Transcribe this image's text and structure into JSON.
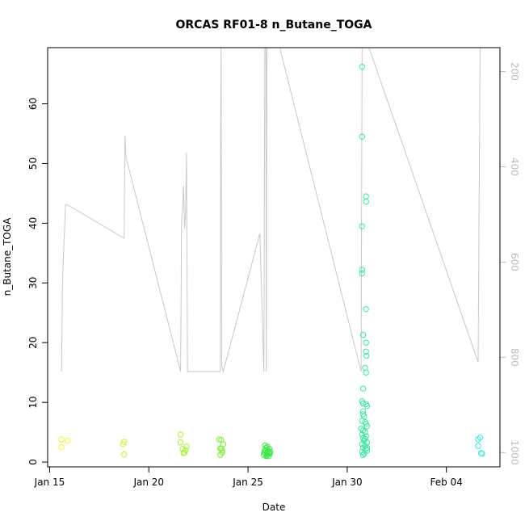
{
  "chart_data": {
    "type": "scatter",
    "title": "ORCAS RF01-8 n_Butane_TOGA",
    "xlabel": "Date",
    "ylabel": "n_Butane_TOGA",
    "x_ticks": [
      {
        "day": 15,
        "label": "Jan 15"
      },
      {
        "day": 20,
        "label": "Jan 20"
      },
      {
        "day": 25,
        "label": "Jan 25"
      },
      {
        "day": 30,
        "label": "Jan 30"
      },
      {
        "day": 35,
        "label": "Feb 04"
      }
    ],
    "xlim": [
      14.9,
      37.7
    ],
    "ylim": [
      -0.8,
      69.4
    ],
    "y_ticks": [
      0,
      10,
      20,
      30,
      40,
      50,
      60
    ],
    "y2_label_color": "#bdbdbd",
    "y2_ticks": [
      200,
      400,
      600,
      800,
      1000
    ],
    "y2lim": [
      1030,
      150
    ],
    "line_color": "#c8c8c8",
    "grid": false,
    "series": [
      {
        "color": "#f2f23c",
        "points": [
          [
            15.6,
            3.8
          ],
          [
            15.6,
            2.5
          ],
          [
            15.9,
            3.6
          ]
        ]
      },
      {
        "color": "#cdf03c",
        "points": [
          [
            18.7,
            3.0
          ],
          [
            18.75,
            3.4
          ],
          [
            18.75,
            1.3
          ]
        ]
      },
      {
        "color": "#a8ee3c",
        "points": [
          [
            21.6,
            4.6
          ],
          [
            21.6,
            3.3
          ],
          [
            21.7,
            2.2
          ],
          [
            21.8,
            1.6
          ],
          [
            21.85,
            2.0
          ],
          [
            21.9,
            2.6
          ],
          [
            21.75,
            1.5
          ]
        ]
      },
      {
        "color": "#80ec3c",
        "points": [
          [
            23.55,
            3.8
          ],
          [
            23.6,
            2.3
          ],
          [
            23.6,
            1.2
          ],
          [
            23.65,
            3.7
          ],
          [
            23.65,
            2.2
          ],
          [
            23.7,
            1.6
          ],
          [
            23.75,
            3.0
          ],
          [
            23.7,
            1.9
          ]
        ]
      },
      {
        "color": "#40e84a",
        "points": [
          [
            25.8,
            1.2
          ],
          [
            25.82,
            1.6
          ],
          [
            25.85,
            2.0
          ],
          [
            25.88,
            1.4
          ],
          [
            25.9,
            1.8
          ],
          [
            25.92,
            2.4
          ],
          [
            25.95,
            1.1
          ],
          [
            25.97,
            1.5
          ],
          [
            25.98,
            2.6
          ],
          [
            26.0,
            1.3
          ],
          [
            26.02,
            1.9
          ],
          [
            26.05,
            1.0
          ],
          [
            26.08,
            2.2
          ],
          [
            26.1,
            1.4
          ],
          [
            26.12,
            1.7
          ],
          [
            25.86,
            2.8
          ],
          [
            25.93,
            1.0
          ],
          [
            26.06,
            1.6
          ]
        ]
      },
      {
        "color": "#3ce8a0",
        "points": [
          [
            30.75,
            66.2
          ],
          [
            30.75,
            54.5
          ],
          [
            30.95,
            44.5
          ],
          [
            30.95,
            43.6
          ],
          [
            30.75,
            39.5
          ],
          [
            30.75,
            32.2
          ],
          [
            30.75,
            31.6
          ],
          [
            30.95,
            25.6
          ],
          [
            30.8,
            21.3
          ],
          [
            30.95,
            20.0
          ],
          [
            30.95,
            18.5
          ],
          [
            30.97,
            17.8
          ],
          [
            30.9,
            15.8
          ],
          [
            30.95,
            15.0
          ],
          [
            30.8,
            12.3
          ],
          [
            30.75,
            10.2
          ],
          [
            30.8,
            9.8
          ],
          [
            30.95,
            9.7
          ],
          [
            31.0,
            9.4
          ],
          [
            30.8,
            8.5
          ],
          [
            30.85,
            7.7
          ],
          [
            30.75,
            6.9
          ],
          [
            30.9,
            6.7
          ],
          [
            30.95,
            6.4
          ],
          [
            31.0,
            6.0
          ],
          [
            30.7,
            5.6
          ],
          [
            30.8,
            5.3
          ],
          [
            30.9,
            5.0
          ],
          [
            30.75,
            4.6
          ],
          [
            30.95,
            4.3
          ],
          [
            30.8,
            4.0
          ],
          [
            30.85,
            3.6
          ],
          [
            31.0,
            3.3
          ],
          [
            30.75,
            3.0
          ],
          [
            30.9,
            2.7
          ],
          [
            30.8,
            2.4
          ],
          [
            30.95,
            2.2
          ],
          [
            31.0,
            1.9
          ],
          [
            30.75,
            1.7
          ],
          [
            30.85,
            1.4
          ],
          [
            30.8,
            8.0
          ],
          [
            30.9,
            3.9
          ],
          [
            30.8,
            1.2
          ],
          [
            31.0,
            2.4
          ]
        ]
      },
      {
        "color": "#3cead2",
        "points": [
          [
            36.6,
            3.8
          ],
          [
            36.7,
            4.1
          ],
          [
            36.6,
            2.7
          ],
          [
            36.75,
            1.5
          ],
          [
            36.8,
            1.4
          ]
        ]
      }
    ],
    "line_series": {
      "name": "",
      "points": [
        [
          15.6,
          830
        ],
        [
          15.65,
          640
        ],
        [
          15.8,
          480
        ],
        [
          15.9,
          480
        ],
        [
          18.75,
          550
        ],
        [
          18.8,
          335
        ],
        [
          18.85,
          380
        ],
        [
          21.6,
          830
        ],
        [
          21.65,
          510
        ],
        [
          21.7,
          490
        ],
        [
          21.75,
          440
        ],
        [
          21.8,
          530
        ],
        [
          21.85,
          500
        ],
        [
          21.9,
          370
        ],
        [
          21.95,
          830
        ],
        [
          23.6,
          830
        ],
        [
          23.62,
          300
        ],
        [
          23.64,
          150
        ],
        [
          23.66,
          575
        ],
        [
          23.68,
          820
        ],
        [
          23.75,
          830
        ],
        [
          25.6,
          540
        ],
        [
          25.8,
          830
        ],
        [
          25.85,
          150
        ],
        [
          25.9,
          150
        ],
        [
          25.92,
          830
        ],
        [
          25.95,
          150
        ],
        [
          26.6,
          150
        ],
        [
          30.7,
          830
        ],
        [
          30.75,
          150
        ],
        [
          30.8,
          150
        ],
        [
          30.85,
          150
        ],
        [
          30.9,
          150
        ],
        [
          30.95,
          150
        ],
        [
          31.0,
          150
        ],
        [
          31.05,
          150
        ],
        [
          31.1,
          150
        ],
        [
          36.6,
          810
        ],
        [
          36.7,
          150
        ]
      ]
    }
  }
}
